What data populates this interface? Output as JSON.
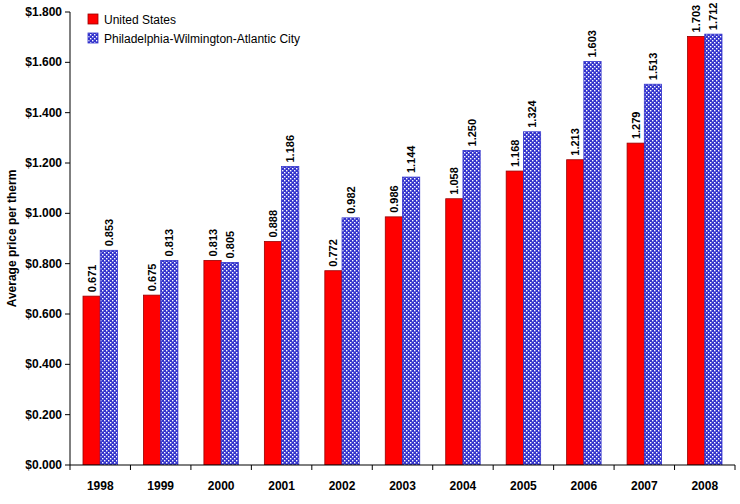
{
  "chart_data": {
    "type": "bar",
    "y_label": "Average price per therm",
    "categories": [
      "1998",
      "1999",
      "2000",
      "2001",
      "2002",
      "2003",
      "2004",
      "2005",
      "2006",
      "2007",
      "2008"
    ],
    "series": [
      {
        "name": "United States",
        "color": "#ff0000",
        "values": [
          0.671,
          0.675,
          0.813,
          0.888,
          0.772,
          0.986,
          1.058,
          1.168,
          1.213,
          1.279,
          1.703
        ],
        "value_labels": [
          "0.671",
          "0.675",
          "0.813",
          "0.888",
          "0.772",
          "0.986",
          "1.058",
          "1.168",
          "1.213",
          "1.279",
          "1.703"
        ]
      },
      {
        "name": "Philadelphia-Wilmington-Atlantic City",
        "color": "#3333cc",
        "values": [
          0.853,
          0.813,
          0.805,
          1.186,
          0.982,
          1.144,
          1.25,
          1.324,
          1.603,
          1.513,
          1.712
        ],
        "value_labels": [
          "0.853",
          "0.813",
          "0.805",
          "1.186",
          "0.982",
          "1.144",
          "1.250",
          "1.324",
          "1.603",
          "1.513",
          "1.712"
        ]
      }
    ],
    "ylim": [
      0,
      1.8
    ],
    "yticks": [
      {
        "value": 0,
        "label": "$0.000"
      },
      {
        "value": 0.2,
        "label": "$0.200"
      },
      {
        "value": 0.4,
        "label": "$0.400"
      },
      {
        "value": 0.6,
        "label": "$0.600"
      },
      {
        "value": 0.8,
        "label": "$0.800"
      },
      {
        "value": 1.0,
        "label": "$1.000"
      },
      {
        "value": 1.2,
        "label": "$1.200"
      },
      {
        "value": 1.4,
        "label": "$1.400"
      },
      {
        "value": 1.6,
        "label": "$1.600"
      },
      {
        "value": 1.8,
        "label": "$1.800"
      }
    ],
    "grid": false,
    "legend": "upper left",
    "data_labels": true
  }
}
